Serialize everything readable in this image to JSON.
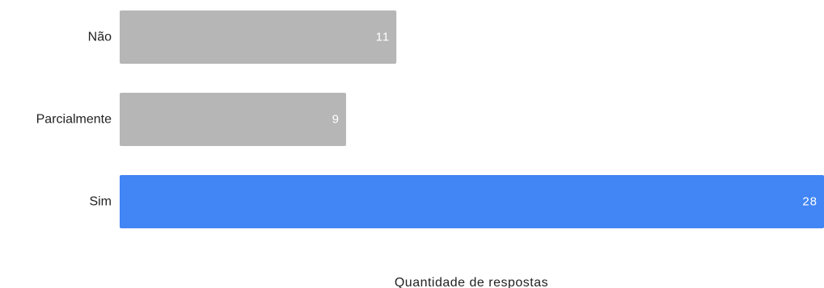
{
  "chart_data": {
    "type": "bar",
    "orientation": "horizontal",
    "categories": [
      "Não",
      "Parcialmente",
      "Sim"
    ],
    "values": [
      11,
      9,
      28
    ],
    "colors": [
      "#b6b6b6",
      "#b6b6b6",
      "#4285f4"
    ],
    "xlabel": "Quantidade de respostas",
    "ylabel": "",
    "xlim": [
      0,
      28
    ],
    "grid": false,
    "data_labels": true
  }
}
